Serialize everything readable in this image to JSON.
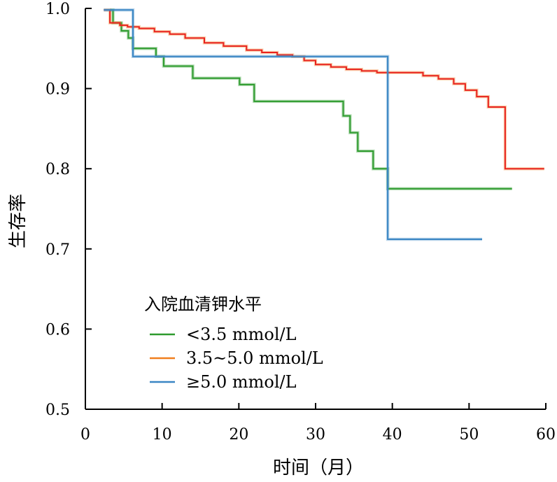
{
  "chart_data": {
    "type": "line",
    "xlabel": "时间（月）",
    "ylabel": "生存率",
    "xlim": [
      0,
      60
    ],
    "ylim": [
      0.5,
      1.0
    ],
    "x_ticks": [
      "0",
      "10",
      "20",
      "30",
      "40",
      "50",
      "60"
    ],
    "y_ticks": [
      "0.5",
      "0.6",
      "0.7",
      "0.8",
      "0.9",
      "1.0"
    ],
    "grid": false,
    "legend": {
      "title": "入院血清钾水平",
      "placement": "lower-left"
    },
    "series": [
      {
        "name": "<3.5 mmol/L",
        "color": "#2e9b2e",
        "step": true,
        "x": [
          3.2,
          3.6,
          4.7,
          5.6,
          6.2,
          9.2,
          10.2,
          14.0,
          20.1,
          22.0,
          33.6,
          34.5,
          35.5,
          37.5,
          39.4,
          55.6
        ],
        "y": [
          0.998,
          0.982,
          0.972,
          0.963,
          0.95,
          0.94,
          0.928,
          0.913,
          0.905,
          0.884,
          0.866,
          0.845,
          0.822,
          0.8,
          0.775,
          0.775
        ]
      },
      {
        "name": "3.5~5.0 mmol/L",
        "color": "#f07f1e",
        "line_color": "#e8221e",
        "step": true,
        "x": [
          2.4,
          3.2,
          4.5,
          5.5,
          7.0,
          9.0,
          11.0,
          13.0,
          15.5,
          18.0,
          21.0,
          23.0,
          25.0,
          27.0,
          28.5,
          30.0,
          32.0,
          34.0,
          36.0,
          38.0,
          44.0,
          46.0,
          48.0,
          49.5,
          51.0,
          52.5,
          54.7,
          59.8
        ],
        "y": [
          0.998,
          0.982,
          0.979,
          0.977,
          0.975,
          0.971,
          0.968,
          0.963,
          0.957,
          0.953,
          0.948,
          0.945,
          0.942,
          0.94,
          0.935,
          0.93,
          0.927,
          0.924,
          0.922,
          0.92,
          0.916,
          0.912,
          0.906,
          0.898,
          0.89,
          0.877,
          0.8,
          0.8
        ]
      },
      {
        "name": "≥5.0 mmol/L",
        "color": "#3a86c4",
        "step": true,
        "x": [
          2.4,
          6.2,
          39.4,
          51.7
        ],
        "y": [
          0.998,
          0.94,
          0.712,
          0.712
        ]
      }
    ]
  }
}
